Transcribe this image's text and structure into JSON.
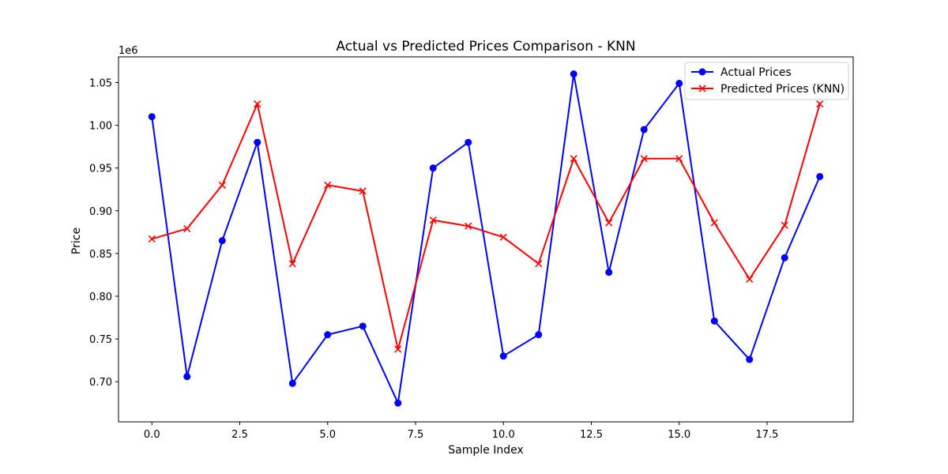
{
  "chart_data": {
    "type": "line",
    "title": "Actual vs Predicted Prices Comparison - KNN",
    "xlabel": "Sample Index",
    "ylabel": "Price",
    "y_offset_label": "1e6",
    "x": [
      0,
      1,
      2,
      3,
      4,
      5,
      6,
      7,
      8,
      9,
      10,
      11,
      12,
      13,
      14,
      15,
      16,
      17,
      18,
      19
    ],
    "xlim": [
      -0.95,
      19.95
    ],
    "ylim": [
      653000,
      1080000
    ],
    "x_ticks": [
      0,
      2.5,
      5,
      7.5,
      10,
      12.5,
      15,
      17.5
    ],
    "x_tick_labels": [
      "0.0",
      "2.5",
      "5.0",
      "7.5",
      "10.0",
      "12.5",
      "15.0",
      "17.5"
    ],
    "y_ticks": [
      700000,
      750000,
      800000,
      850000,
      900000,
      950000,
      1000000,
      1050000
    ],
    "y_tick_labels": [
      "0.70",
      "0.75",
      "0.80",
      "0.85",
      "0.90",
      "0.95",
      "1.00",
      "1.05"
    ],
    "grid": false,
    "legend_position": "top-right",
    "series": [
      {
        "name": "Actual Prices",
        "color": "#0000ff",
        "marker": "circle",
        "values": [
          1010000,
          706000,
          865000,
          980000,
          698000,
          755000,
          765000,
          675000,
          950000,
          980000,
          730000,
          755000,
          1060000,
          828000,
          995000,
          1049000,
          771000,
          726000,
          845000,
          940000
        ]
      },
      {
        "name": "Predicted Prices (KNN)",
        "color": "#ff0000",
        "marker": "x",
        "values": [
          867000,
          879000,
          930000,
          1025000,
          838000,
          930000,
          923000,
          738000,
          889000,
          882000,
          869000,
          838000,
          961000,
          886000,
          961000,
          961000,
          886000,
          820000,
          883000,
          1025000
        ]
      }
    ]
  }
}
